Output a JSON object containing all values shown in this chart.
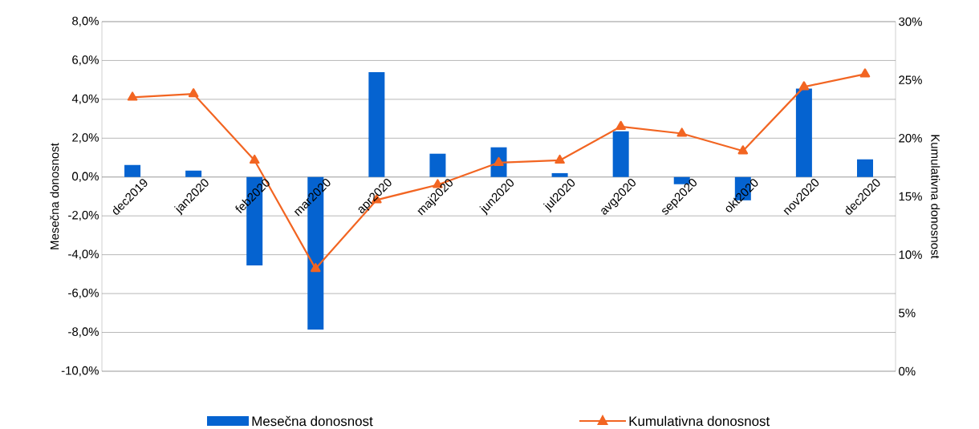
{
  "chart_data": {
    "type": "bar",
    "categories": [
      "dec2019",
      "jan2020",
      "feb2020",
      "mar2020",
      "apr2020",
      "maj2020",
      "jun2020",
      "jul2020",
      "avg2020",
      "sep2020",
      "okt2020",
      "nov2020",
      "dec2020"
    ],
    "series": [
      {
        "name": "Mesečna donosnost",
        "color": "#0563d0",
        "values": [
          0.62,
          0.33,
          -4.55,
          -7.85,
          5.4,
          1.2,
          1.53,
          0.2,
          2.35,
          -0.37,
          -1.2,
          4.55,
          0.91
        ]
      },
      {
        "name": "Kumulativna donosnost",
        "type": "line",
        "axis": "y2",
        "color": "#f26522",
        "values": [
          23.5,
          23.8,
          18.1,
          8.8,
          14.7,
          16.0,
          17.9,
          18.1,
          21.0,
          20.4,
          18.9,
          24.4,
          25.5
        ]
      }
    ],
    "ylabel": "Mesečna donosnost",
    "y2label": "Kumulativna donosnost",
    "ylim": [
      -10,
      8
    ],
    "yticks": [
      {
        "value": -10,
        "label": "-10,0%"
      },
      {
        "value": -8,
        "label": "-8,0%"
      },
      {
        "value": -6,
        "label": "-6,0%"
      },
      {
        "value": -4,
        "label": "-4,0%"
      },
      {
        "value": -2,
        "label": "-2,0%"
      },
      {
        "value": 0,
        "label": "0,0%"
      },
      {
        "value": 2,
        "label": "2,0%"
      },
      {
        "value": 4,
        "label": "4,0%"
      },
      {
        "value": 6,
        "label": "6,0%"
      },
      {
        "value": 8,
        "label": "8,0%"
      }
    ],
    "y2lim": [
      0,
      30
    ],
    "y2ticks": [
      {
        "value": 0,
        "label": "0%"
      },
      {
        "value": 5,
        "label": "5%"
      },
      {
        "value": 10,
        "label": "10%"
      },
      {
        "value": 15,
        "label": "15%"
      },
      {
        "value": 20,
        "label": "20%"
      },
      {
        "value": 25,
        "label": "25%"
      },
      {
        "value": 30,
        "label": "30%"
      }
    ],
    "grid": "y",
    "legend": "bottom",
    "marker": "triangle",
    "line_style": "solid"
  }
}
